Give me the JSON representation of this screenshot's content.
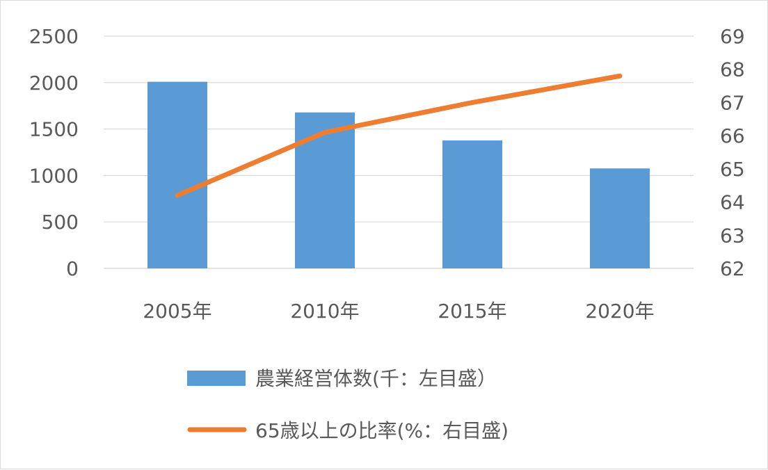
{
  "chart_data": {
    "type": "bar",
    "categories": [
      "2005年",
      "2010年",
      "2015年",
      "2020年"
    ],
    "series": [
      {
        "name": "農業経営体数(千：左目盛）",
        "type": "bar",
        "axis": "left",
        "values": [
          2009,
          1679,
          1377,
          1076
        ],
        "color": "#5b9bd5"
      },
      {
        "name": "65歳以上の比率(%：右目盛)",
        "type": "line",
        "axis": "right",
        "values": [
          64.2,
          66.1,
          67.0,
          67.8
        ],
        "color": "#ed7d31"
      }
    ],
    "y_left": {
      "ylim": [
        0,
        2500
      ],
      "ticks": [
        "0",
        "500",
        "1000",
        "1500",
        "2000",
        "2500"
      ]
    },
    "y_right": {
      "ylim": [
        62,
        69
      ],
      "ticks": [
        "62",
        "63",
        "64",
        "65",
        "66",
        "67",
        "68",
        "69"
      ]
    },
    "grid": true,
    "legend_position": "bottom",
    "title": "",
    "xlabel": "",
    "ylabel": ""
  }
}
